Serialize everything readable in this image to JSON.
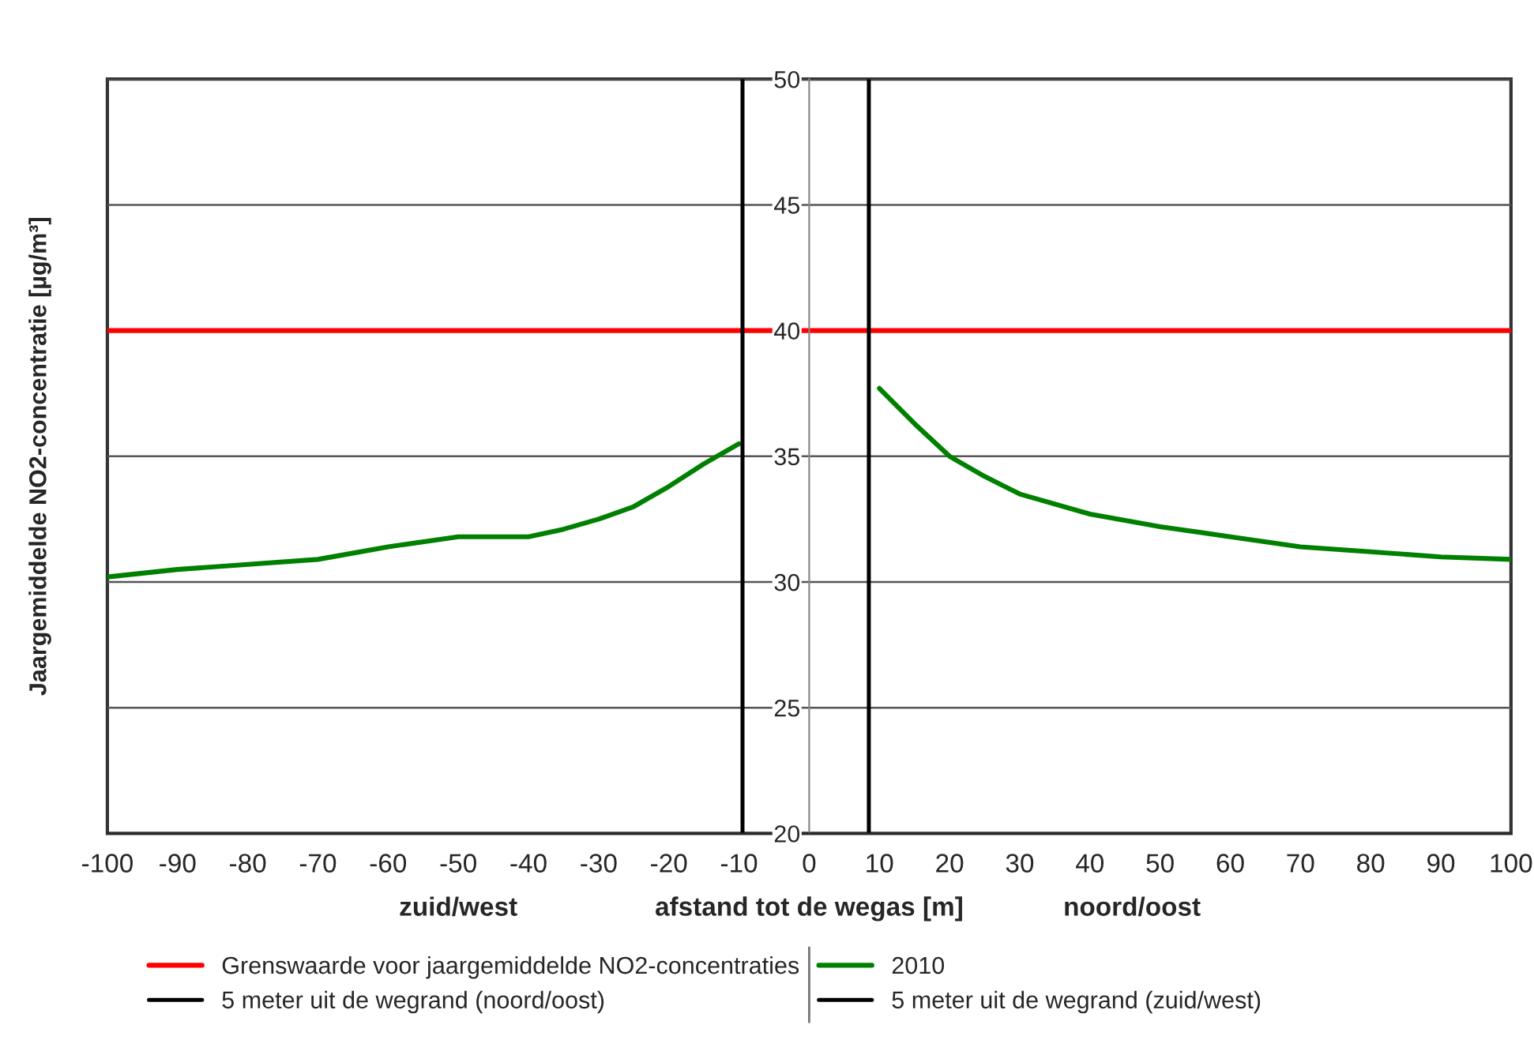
{
  "chart_data": {
    "type": "line",
    "xlabel": "afstand tot de wegas [m]",
    "ylabel": "Jaargemiddelde NO2-concentratie [µg/m³]",
    "annotations": [
      "zuid/west",
      "noord/oost"
    ],
    "series": [
      {
        "name": "2010",
        "color": "#008000",
        "x": [
          -100,
          -90,
          -80,
          -70,
          -60,
          -50,
          -45,
          -40,
          -35,
          -30,
          -25,
          -20,
          -15,
          -10,
          0,
          10,
          15,
          20,
          25,
          30,
          40,
          50,
          60,
          70,
          80,
          90,
          100
        ],
        "values": [
          30.2,
          30.5,
          30.7,
          30.9,
          31.4,
          31.8,
          31.8,
          31.8,
          32.1,
          32.5,
          33.0,
          33.8,
          34.7,
          35.5,
          null,
          37.7,
          36.3,
          35.0,
          34.2,
          33.5,
          32.7,
          32.2,
          31.8,
          31.4,
          31.2,
          31.0,
          30.9
        ]
      }
    ],
    "ref_lines": [
      {
        "axis": "y",
        "value": 40,
        "label": "Grenswaarde voor jaargemiddelde NO2-concentraties",
        "color": "#ff0000"
      },
      {
        "axis": "x",
        "value": -9.5,
        "label": "5 meter uit de wegrand (zuid/west)",
        "color": "#000000"
      },
      {
        "axis": "x",
        "value": 8.5,
        "label": "5 meter uit de wegrand (noord/oost)",
        "color": "#000000"
      }
    ],
    "xlim": [
      -100,
      100
    ],
    "xticks": [
      -100,
      -90,
      -80,
      -70,
      -60,
      -50,
      -40,
      -30,
      -20,
      -10,
      0,
      10,
      20,
      30,
      40,
      50,
      60,
      70,
      80,
      90,
      100
    ],
    "ylim": [
      20,
      50
    ],
    "yticks": [
      20,
      25,
      30,
      35,
      40,
      45,
      50
    ],
    "grid": "y",
    "legend": "bottom",
    "line_style": "solid"
  }
}
